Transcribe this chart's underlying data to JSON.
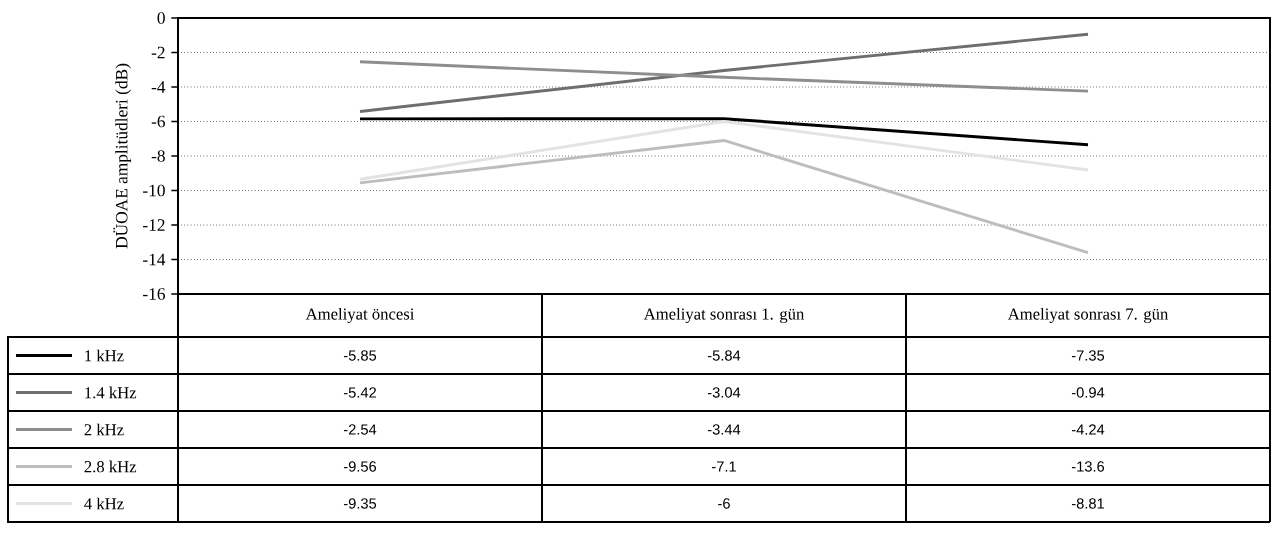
{
  "chart_data": {
    "type": "line",
    "ylabel": "DÜOAE amplitüdleri (dB)",
    "categories": [
      "Ameliyat öncesi",
      "Ameliyat sonrası 1. gün",
      "Ameliyat sonrası 7. gün"
    ],
    "series": [
      {
        "name": "1 kHz",
        "color": "#000000",
        "values": [
          -5.85,
          -5.84,
          -7.35
        ]
      },
      {
        "name": "1.4 kHz",
        "color": "#6e6e6e",
        "values": [
          -5.42,
          -3.04,
          -0.94
        ]
      },
      {
        "name": "2 kHz",
        "color": "#8e8e8e",
        "values": [
          -2.54,
          -3.44,
          -4.24
        ]
      },
      {
        "name": "2.8 kHz",
        "color": "#bdbdbd",
        "values": [
          -9.56,
          -7.1,
          -13.6
        ]
      },
      {
        "name": "4 kHz",
        "color": "#e3e3e3",
        "values": [
          -9.35,
          -6,
          -8.81
        ]
      }
    ],
    "ylim": [
      -16,
      0
    ],
    "yticks": [
      -16,
      -14,
      -12,
      -10,
      -8,
      -6,
      -4,
      -2,
      0
    ],
    "grid": "y",
    "line_style": "solid",
    "legend": "bottom",
    "data_labels": true
  }
}
